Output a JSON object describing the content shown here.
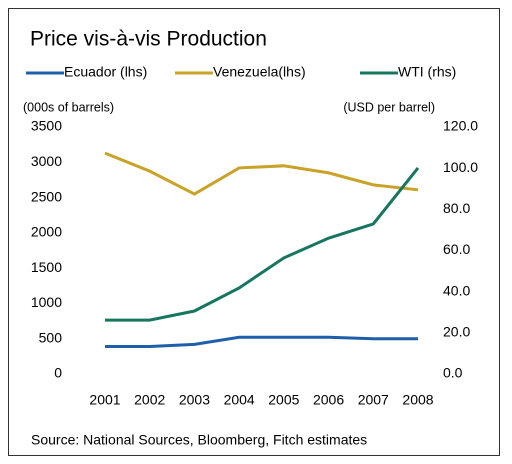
{
  "chart_data": {
    "type": "line",
    "title": "Price vis-à-vis Production",
    "y_label": "(000s of barrels)",
    "y2_label": "(USD per barrel)",
    "source": "Source: National Sources, Bloomberg, Fitch estimates",
    "categories": [
      "2001",
      "2002",
      "2003",
      "2004",
      "2005",
      "2006",
      "2007",
      "2008"
    ],
    "series": [
      {
        "name": "Ecuador (lhs)",
        "color": "#1f5fa8",
        "values": [
          390,
          390,
          420,
          520,
          520,
          520,
          500,
          500
        ]
      },
      {
        "name": "Venezuela(lhs)",
        "color": "#c9a227",
        "values": [
          3130,
          2875,
          2550,
          2920,
          2950,
          2850,
          2680,
          2610
        ]
      },
      {
        "name": "WTI (rhs)",
        "color": "#17765f",
        "axis": "y2",
        "values": [
          26.2,
          26.2,
          30.6,
          41.8,
          56.4,
          66.0,
          72.9,
          100.1
        ]
      }
    ],
    "ylim": [
      0,
      3500
    ],
    "yticks": [
      0,
      500,
      1000,
      1500,
      2000,
      2500,
      3000,
      3500
    ],
    "y2lim": [
      0,
      120
    ],
    "y2ticks": [
      {
        "value": 0,
        "label": "0.0"
      },
      {
        "value": 20,
        "label": "20.0"
      },
      {
        "value": 40,
        "label": "40.0"
      },
      {
        "value": 60,
        "label": "60.0"
      },
      {
        "value": 80,
        "label": "80.0"
      },
      {
        "value": 100,
        "label": "100.0"
      },
      {
        "value": 120,
        "label": "120.0"
      }
    ],
    "legend": "top"
  }
}
